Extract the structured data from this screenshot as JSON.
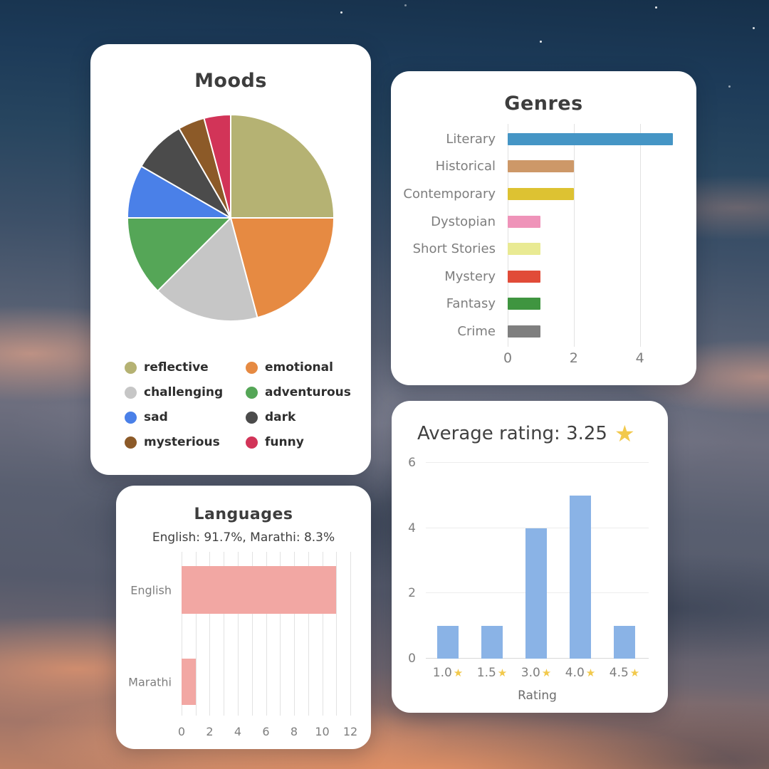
{
  "chart_data": [
    {
      "id": "moods",
      "type": "pie",
      "title": "Moods",
      "labels": [
        "reflective",
        "emotional",
        "challenging",
        "adventurous",
        "sad",
        "dark",
        "mysterious",
        "funny"
      ],
      "values": [
        6,
        5,
        4,
        3,
        2,
        2,
        1,
        1
      ],
      "colors": [
        "#b5b273",
        "#e68a42",
        "#c6c6c6",
        "#55a657",
        "#4a80e8",
        "#4b4b4b",
        "#8c5a28",
        "#d23458"
      ],
      "legend_position": "bottom",
      "start_angle_deg": -90,
      "direction": "clockwise"
    },
    {
      "id": "genres",
      "type": "bar",
      "orientation": "horizontal",
      "title": "Genres",
      "categories": [
        "Literary",
        "Historical",
        "Contemporary",
        "Dystopian",
        "Short Stories",
        "Mystery",
        "Fantasy",
        "Crime"
      ],
      "values": [
        5,
        2,
        2,
        1,
        1,
        1,
        1,
        1
      ],
      "bar_colors": [
        "#4595c5",
        "#cd9868",
        "#ddc232",
        "#ef93b9",
        "#e9ea93",
        "#e14b38",
        "#3f9540",
        "#7f7f7f"
      ],
      "xticks": [
        0,
        2,
        4
      ],
      "xlim": [
        0,
        5.3
      ],
      "grid": true
    },
    {
      "id": "languages",
      "type": "bar",
      "orientation": "horizontal",
      "title": "Languages",
      "subtitle": "English: 91.7%, Marathi: 8.3%",
      "categories": [
        "English",
        "Marathi"
      ],
      "values": [
        11,
        1
      ],
      "bar_color": "#f2a7a3",
      "xticks": [
        0,
        2,
        4,
        6,
        8,
        10,
        12
      ],
      "xlim": [
        0,
        12
      ],
      "gridline_every": 1
    },
    {
      "id": "ratings",
      "type": "bar",
      "orientation": "vertical",
      "title": "Average rating: 3.25",
      "title_star_icon": "★",
      "categories": [
        "1.0",
        "1.5",
        "3.0",
        "4.0",
        "4.5"
      ],
      "category_star_icon": "★",
      "values": [
        1,
        1,
        4,
        5,
        1
      ],
      "bar_color": "#8ab3e6",
      "yticks": [
        0,
        2,
        4,
        6
      ],
      "ylim": [
        0,
        6
      ],
      "xlabel": "Rating",
      "star_color": "#f2c94c"
    }
  ]
}
